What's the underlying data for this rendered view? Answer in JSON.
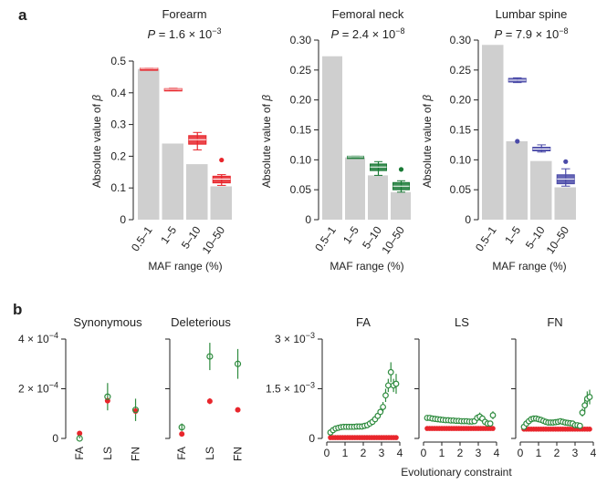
{
  "chart_data": [
    {
      "type": "bar",
      "panel": "a",
      "title": "Forearm",
      "annotation": "P = 1.6 × 10^−3",
      "xlabel": "MAF range (%)",
      "ylabel": "Absolute value of β",
      "ylim": [
        0,
        0.5
      ],
      "yticks": [
        "0",
        "0.1",
        "0.2",
        "0.3",
        "0.4",
        "0.5"
      ],
      "categories": [
        "0.5–1",
        "1–5",
        "5–10",
        "10–50"
      ],
      "values": [
        0.475,
        0.24,
        0.175,
        0.105
      ],
      "boxes": [
        {
          "q1": 0.476,
          "median": 0.477,
          "q3": 0.478,
          "low": 0.476,
          "high": 0.478,
          "outliers": []
        },
        {
          "q1": 0.409,
          "median": 0.411,
          "q3": 0.413,
          "low": 0.408,
          "high": 0.414,
          "outliers": []
        },
        {
          "q1": 0.238,
          "median": 0.252,
          "q3": 0.265,
          "low": 0.22,
          "high": 0.275,
          "outliers": []
        },
        {
          "q1": 0.116,
          "median": 0.128,
          "q3": 0.137,
          "low": 0.108,
          "high": 0.142,
          "outliers": [
            0.188
          ]
        }
      ],
      "color": "#e8262c"
    },
    {
      "type": "bar",
      "panel": "a",
      "title": "Femoral neck",
      "annotation": "P = 2.4 × 10^−8",
      "xlabel": "MAF range (%)",
      "ylabel": "Absolute value of β",
      "ylim": [
        0,
        0.3
      ],
      "yticks": [
        "0",
        "0.05",
        "0.10",
        "0.15",
        "0.20",
        "0.25",
        "0.30"
      ],
      "categories": [
        "0.5–1",
        "1–5",
        "5–10",
        "10–50"
      ],
      "values": [
        0.273,
        0.104,
        0.074,
        0.046
      ],
      "boxes": [
        null,
        {
          "q1": 0.104,
          "median": 0.105,
          "q3": 0.106,
          "low": 0.104,
          "high": 0.106,
          "outliers": []
        },
        {
          "q1": 0.082,
          "median": 0.088,
          "q3": 0.093,
          "low": 0.074,
          "high": 0.097,
          "outliers": []
        },
        {
          "q1": 0.05,
          "median": 0.056,
          "q3": 0.062,
          "low": 0.046,
          "high": 0.065,
          "outliers": [
            0.084
          ]
        }
      ],
      "color": "#1a7a36"
    },
    {
      "type": "bar",
      "panel": "a",
      "title": "Lumbar spine",
      "annotation": "P = 7.9 × 10^−8",
      "xlabel": "MAF range (%)",
      "ylabel": "Absolute value of β",
      "ylim": [
        0,
        0.3
      ],
      "yticks": [
        "0",
        "0.05",
        "0.10",
        "0.15",
        "0.20",
        "0.25",
        "0.30"
      ],
      "categories": [
        "0.5–1",
        "1–5",
        "5–10",
        "10–50"
      ],
      "values": [
        0.292,
        0.131,
        0.098,
        0.054
      ],
      "boxes": [
        null,
        {
          "q1": 0.23,
          "median": 0.233,
          "q3": 0.236,
          "low": 0.229,
          "high": 0.237,
          "outliers": [
            0.131
          ]
        },
        {
          "q1": 0.115,
          "median": 0.118,
          "q3": 0.121,
          "low": 0.113,
          "high": 0.125,
          "outliers": []
        },
        {
          "q1": 0.06,
          "median": 0.068,
          "q3": 0.075,
          "low": 0.056,
          "high": 0.085,
          "outliers": [
            0.097
          ]
        }
      ],
      "color": "#4a4aa8"
    },
    {
      "type": "scatter",
      "panel": "b",
      "title": "Synonymous",
      "categories": [
        "FA",
        "LS",
        "FN"
      ],
      "ylim": [
        0,
        0.0004
      ],
      "yticks": [
        "0",
        "2 × 10^−4",
        "4 × 10^−4"
      ],
      "series": [
        {
          "marker": "open-green",
          "values": [
            0.0,
            0.000168,
            0.000115
          ],
          "err": [
            7.5e-06,
            5.5e-05,
            4.5e-05
          ]
        },
        {
          "marker": "filled-red",
          "values": [
            2e-05,
            0.000152,
            0.00011
          ],
          "err": [
            4e-06,
            1.2e-05,
            1.2e-05
          ]
        }
      ]
    },
    {
      "type": "scatter",
      "panel": "b",
      "title": "Deleterious",
      "categories": [
        "FA",
        "LS",
        "FN"
      ],
      "ylim": [
        0,
        0.0004
      ],
      "series": [
        {
          "marker": "open-green",
          "values": [
            4.5e-05,
            0.00033,
            0.0003
          ],
          "err": [
            1.5e-05,
            5.5e-05,
            6e-05
          ]
        },
        {
          "marker": "filled-red",
          "values": [
            1.8e-05,
            0.00015,
            0.000115
          ],
          "err": [
            4e-06,
            1.2e-05,
            1e-05
          ]
        }
      ]
    },
    {
      "type": "scatter",
      "panel": "b",
      "title": "FA",
      "ylim": [
        0,
        0.003
      ],
      "xlim": [
        0,
        4
      ],
      "xticks": [
        "0",
        "1",
        "2",
        "3",
        "4"
      ],
      "yticks": [
        "0",
        "1.5 × 10^−3",
        "3 × 10^−3"
      ],
      "green_y": [
        0.00018,
        0.00025,
        0.0003,
        0.00032,
        0.00034,
        0.00035,
        0.00035,
        0.00035,
        0.00035,
        0.00035,
        0.00036,
        0.00036,
        0.00036,
        0.00038,
        0.0004,
        0.00045,
        0.0005,
        0.00058,
        0.00068,
        0.0008,
        0.00095,
        0.0013,
        0.0016,
        0.002,
        0.0016,
        0.00165
      ],
      "green_err": [
        0,
        0,
        0,
        0,
        0,
        0,
        0,
        0,
        0,
        0,
        0,
        0,
        0,
        0,
        0,
        0,
        0,
        0,
        0,
        0,
        0.00015,
        0.0002,
        0.0002,
        0.0003,
        0.0002,
        0.0003
      ],
      "red_y": 2.5e-05
    },
    {
      "type": "scatter",
      "panel": "b",
      "title": "LS",
      "ylim": [
        0,
        0.003
      ],
      "xlim": [
        0,
        4
      ],
      "xticks": [
        "0",
        "1",
        "2",
        "3",
        "4"
      ],
      "green_y": [
        0.00062,
        0.00062,
        0.0006,
        0.00059,
        0.00058,
        0.00057,
        0.00056,
        0.00055,
        0.00055,
        0.00054,
        0.00054,
        0.00053,
        0.00053,
        0.00052,
        0.00052,
        0.00052,
        0.00051,
        0.00051,
        0.00052,
        0.00062,
        0.00066,
        0.0006,
        0.0005,
        0.00045,
        0.00045,
        0.0007
      ],
      "green_err": [
        0,
        0,
        0,
        0,
        0,
        0,
        0,
        0,
        0,
        0,
        0,
        0,
        0,
        0,
        0,
        0,
        0,
        0,
        0,
        0.0001,
        0.00012,
        0.0001,
        0,
        0,
        0,
        0.00012
      ],
      "red_y": 0.0003
    },
    {
      "type": "scatter",
      "panel": "b",
      "title": "FN",
      "xlabel": "Evolutionary constraint",
      "ylim": [
        0,
        0.003
      ],
      "xlim": [
        0,
        4
      ],
      "xticks": [
        "0",
        "1",
        "2",
        "3",
        "4"
      ],
      "green_y": [
        0.00035,
        0.00045,
        0.00052,
        0.00058,
        0.0006,
        0.0006,
        0.00058,
        0.00056,
        0.00053,
        0.0005,
        0.00048,
        0.00048,
        0.00048,
        0.00049,
        0.0005,
        0.00052,
        0.0005,
        0.00048,
        0.00047,
        0.00046,
        0.00045,
        0.0004,
        0.0004,
        0.00038,
        0.00078,
        0.001,
        0.0012,
        0.00125
      ],
      "green_err": [
        0,
        0,
        0,
        0,
        0,
        0,
        0,
        0,
        0,
        0,
        0,
        0,
        0,
        0,
        0,
        0,
        0,
        0,
        0,
        0,
        0,
        0,
        0,
        0,
        0.00012,
        0.0002,
        0.00022,
        0.00022
      ],
      "red_y": 0.00028
    }
  ],
  "labels": {
    "panel_a": "a",
    "panel_b": "b"
  }
}
